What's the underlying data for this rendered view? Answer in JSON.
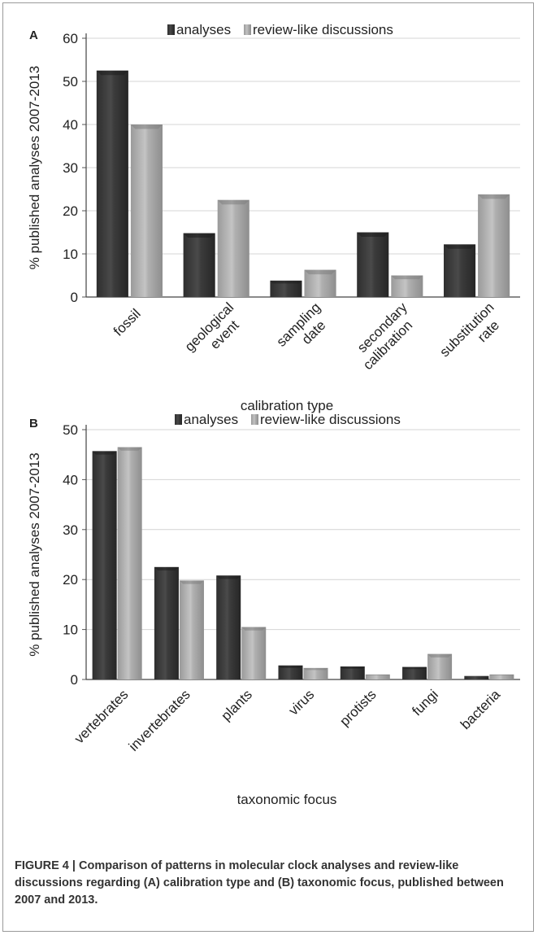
{
  "chart_data": [
    {
      "panel": "A",
      "type": "bar",
      "categories": [
        [
          "fossil"
        ],
        [
          "geological",
          "event"
        ],
        [
          "sampling",
          "date"
        ],
        [
          "secondary",
          "calibration"
        ],
        [
          "substitution",
          "rate"
        ]
      ],
      "series": [
        {
          "name": "analyses",
          "values": [
            52.5,
            14.8,
            3.8,
            15.0,
            12.2
          ]
        },
        {
          "name": "review-like discussions",
          "values": [
            40.0,
            22.5,
            6.3,
            5.0,
            23.8
          ]
        }
      ],
      "xlabel": "calibration type",
      "ylabel": "% published analyses 2007-2013",
      "ylim": [
        0,
        60
      ],
      "yticks": [
        0,
        10,
        20,
        30,
        40,
        50,
        60
      ],
      "grid": true,
      "legend": "top"
    },
    {
      "panel": "B",
      "type": "bar",
      "categories": [
        [
          "vertebrates"
        ],
        [
          "invertebrates"
        ],
        [
          "plants"
        ],
        [
          "virus"
        ],
        [
          "protists"
        ],
        [
          "fungi"
        ],
        [
          "bacteria"
        ]
      ],
      "series": [
        {
          "name": "analyses",
          "values": [
            45.7,
            22.5,
            20.8,
            2.8,
            2.6,
            2.5,
            0.7
          ]
        },
        {
          "name": "review-like discussions",
          "values": [
            46.5,
            19.8,
            10.5,
            2.3,
            1.0,
            5.1,
            1.0
          ]
        }
      ],
      "xlabel": "taxonomic focus",
      "ylabel": "% published analyses 2007-2013",
      "ylim": [
        0,
        50
      ],
      "yticks": [
        0,
        10,
        20,
        30,
        40,
        50
      ],
      "grid": true,
      "legend": "top"
    }
  ],
  "colors": {
    "analyses": "#3a3a3a",
    "review": "#a8a8a8",
    "grid": "#d4d4d4"
  },
  "caption": "FIGURE 4 | Comparison of patterns in molecular clock analyses and review-like discussions regarding (A) calibration type and (B) taxonomic focus, published between 2007 and 2013."
}
